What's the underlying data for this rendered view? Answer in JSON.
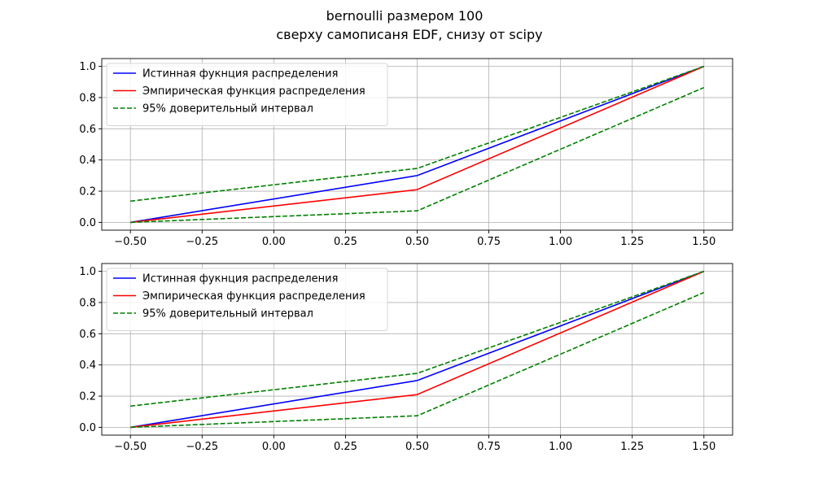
{
  "figure": {
    "title_line1": "bernoulli размером 100",
    "title_line2": "сверху самописаня EDF, снизу от scipy"
  },
  "chart_data": [
    {
      "type": "line",
      "xlim": [
        -0.6,
        1.6
      ],
      "ylim": [
        -0.05,
        1.05
      ],
      "xticks": [
        -0.5,
        -0.25,
        0.0,
        0.25,
        0.5,
        0.75,
        1.0,
        1.25,
        1.5
      ],
      "xtick_labels": [
        "−0.50",
        "−0.25",
        "0.00",
        "0.25",
        "0.50",
        "0.75",
        "1.00",
        "1.25",
        "1.50"
      ],
      "yticks": [
        0.0,
        0.2,
        0.4,
        0.6,
        0.8,
        1.0
      ],
      "ytick_labels": [
        "0.0",
        "0.2",
        "0.4",
        "0.6",
        "0.8",
        "1.0"
      ],
      "grid": true,
      "legend_position": "upper-left",
      "series": [
        {
          "name": "Истинная фукнция распределения",
          "color": "#0000ff",
          "style": "solid",
          "x": [
            -0.5,
            0.5,
            1.5
          ],
          "y": [
            0.0,
            0.3,
            1.0
          ],
          "in_legend": true
        },
        {
          "name": "Эмпирическая функция распределения",
          "color": "#ff0000",
          "style": "solid",
          "x": [
            -0.5,
            0.5,
            1.5
          ],
          "y": [
            0.0,
            0.21,
            1.0
          ],
          "in_legend": true
        },
        {
          "name": "95% доверительный интервал",
          "color": "#008000",
          "style": "dashed",
          "x": [
            -0.5,
            0.5,
            1.5
          ],
          "y": [
            0.136,
            0.346,
            1.0
          ],
          "in_legend": true
        },
        {
          "name": "",
          "color": "#008000",
          "style": "dashed",
          "x": [
            -0.5,
            0.5,
            1.5
          ],
          "y": [
            0.0,
            0.074,
            0.864
          ],
          "in_legend": false
        }
      ]
    },
    {
      "type": "line",
      "xlim": [
        -0.6,
        1.6
      ],
      "ylim": [
        -0.05,
        1.05
      ],
      "xticks": [
        -0.5,
        -0.25,
        0.0,
        0.25,
        0.5,
        0.75,
        1.0,
        1.25,
        1.5
      ],
      "xtick_labels": [
        "−0.50",
        "−0.25",
        "0.00",
        "0.25",
        "0.50",
        "0.75",
        "1.00",
        "1.25",
        "1.50"
      ],
      "yticks": [
        0.0,
        0.2,
        0.4,
        0.6,
        0.8,
        1.0
      ],
      "ytick_labels": [
        "0.0",
        "0.2",
        "0.4",
        "0.6",
        "0.8",
        "1.0"
      ],
      "grid": true,
      "legend_position": "upper-left",
      "series": [
        {
          "name": "Истинная фукнция распределения",
          "color": "#0000ff",
          "style": "solid",
          "x": [
            -0.5,
            0.5,
            1.5
          ],
          "y": [
            0.0,
            0.3,
            1.0
          ],
          "in_legend": true
        },
        {
          "name": "Эмпирическая функция распределения",
          "color": "#ff0000",
          "style": "solid",
          "x": [
            -0.5,
            0.5,
            1.5
          ],
          "y": [
            0.0,
            0.21,
            1.0
          ],
          "in_legend": true
        },
        {
          "name": "95% доверительный интервал",
          "color": "#008000",
          "style": "dashed",
          "x": [
            -0.5,
            0.5,
            1.5
          ],
          "y": [
            0.136,
            0.346,
            1.0
          ],
          "in_legend": true
        },
        {
          "name": "",
          "color": "#008000",
          "style": "dashed",
          "x": [
            -0.5,
            0.5,
            1.5
          ],
          "y": [
            0.0,
            0.074,
            0.864
          ],
          "in_legend": false
        }
      ]
    }
  ]
}
